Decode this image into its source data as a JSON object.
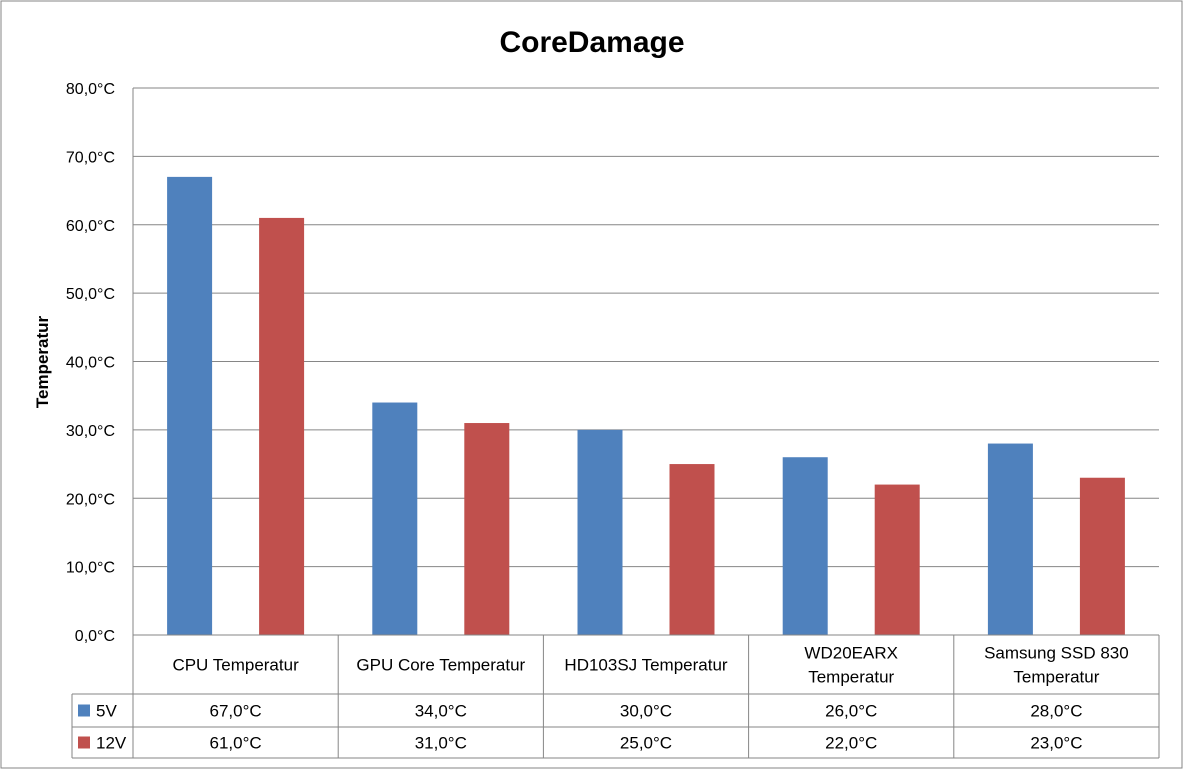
{
  "chart_data": {
    "type": "bar",
    "title": "CoreDamage",
    "ylabel": "Temperatur",
    "xlabel": "",
    "categories": [
      "CPU Temperatur",
      "GPU Core Temperatur",
      "HD103SJ Temperatur",
      "WD20EARX Temperatur",
      "Samsung SSD 830 Temperatur"
    ],
    "category_lines": [
      [
        "CPU Temperatur"
      ],
      [
        "GPU Core Temperatur"
      ],
      [
        "HD103SJ Temperatur"
      ],
      [
        "WD20EARX",
        "Temperatur"
      ],
      [
        "Samsung SSD 830",
        "Temperatur"
      ]
    ],
    "series": [
      {
        "name": "5V",
        "color": "#4F81BD",
        "values": [
          67,
          34,
          30,
          26,
          28
        ],
        "labels": [
          "67,0°C",
          "34,0°C",
          "30,0°C",
          "26,0°C",
          "28,0°C"
        ]
      },
      {
        "name": "12V",
        "color": "#C0504D",
        "values": [
          61,
          31,
          25,
          22,
          23
        ],
        "labels": [
          "61,0°C",
          "31,0°C",
          "25,0°C",
          "22,0°C",
          "23,0°C"
        ]
      }
    ],
    "ylim": [
      0,
      80
    ],
    "yticks": [
      0,
      10,
      20,
      30,
      40,
      50,
      60,
      70,
      80
    ],
    "ytick_labels": [
      "0,0°C",
      "10,0°C",
      "20,0°C",
      "30,0°C",
      "40,0°C",
      "50,0°C",
      "60,0°C",
      "70,0°C",
      "80,0°C"
    ],
    "grid": true,
    "legend": "data-table",
    "data_table": true
  }
}
